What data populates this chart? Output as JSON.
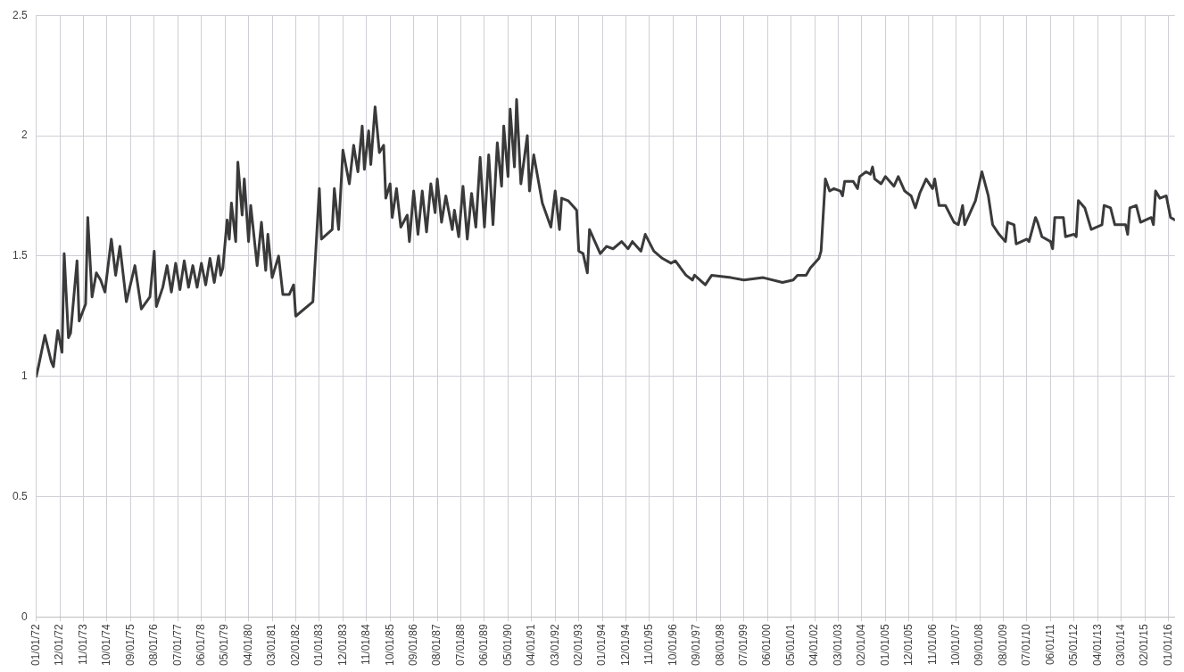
{
  "chart_data": {
    "type": "line",
    "x": [
      "1972-01",
      "1972-02",
      "1972-05",
      "1972-08",
      "1972-09",
      "1972-11",
      "1973-01",
      "1973-02",
      "1973-04",
      "1973-05",
      "1973-08",
      "1973-09",
      "1973-12",
      "1974-01",
      "1974-03",
      "1974-05",
      "1974-07",
      "1974-09",
      "1974-12",
      "1975-02",
      "1975-04",
      "1975-07",
      "1975-11",
      "1976-02",
      "1976-06",
      "1976-08",
      "1976-09",
      "1976-12",
      "1977-02",
      "1977-04",
      "1977-06",
      "1977-08",
      "1977-10",
      "1977-12",
      "1978-02",
      "1978-04",
      "1978-06",
      "1978-08",
      "1978-10",
      "1978-12",
      "1979-02",
      "1979-03",
      "1979-04",
      "1979-06",
      "1979-07",
      "1979-08",
      "1979-10",
      "1979-11",
      "1980-01",
      "1980-02",
      "1980-04",
      "1980-05",
      "1980-08",
      "1980-10",
      "1980-12",
      "1981-01",
      "1981-03",
      "1981-06",
      "1981-08",
      "1981-11",
      "1982-01",
      "1982-02",
      "1982-10",
      "1983-01",
      "1983-02",
      "1983-07",
      "1983-08",
      "1983-10",
      "1983-12",
      "1984-03",
      "1984-05",
      "1984-07",
      "1984-09",
      "1984-10",
      "1984-12",
      "1985-01",
      "1985-03",
      "1985-05",
      "1985-07",
      "1985-08",
      "1985-10",
      "1985-11",
      "1986-01",
      "1986-03",
      "1986-06",
      "1986-07",
      "1986-09",
      "1986-11",
      "1987-01",
      "1987-03",
      "1987-05",
      "1987-07",
      "1987-08",
      "1987-10",
      "1987-12",
      "1988-03",
      "1988-04",
      "1988-06",
      "1988-08",
      "1988-10",
      "1988-12",
      "1989-02",
      "1989-04",
      "1989-06",
      "1989-08",
      "1989-10",
      "1989-12",
      "1990-02",
      "1990-03",
      "1990-05",
      "1990-06",
      "1990-08",
      "1990-09",
      "1990-11",
      "1991-02",
      "1991-03",
      "1991-05",
      "1991-09",
      "1992-01",
      "1992-03",
      "1992-05",
      "1992-06",
      "1992-09",
      "1993-01",
      "1993-02",
      "1993-04",
      "1993-06",
      "1993-07",
      "1993-12",
      "1994-03",
      "1994-06",
      "1994-10",
      "1995-01",
      "1995-03",
      "1995-07",
      "1995-09",
      "1996-01",
      "1996-05",
      "1996-09",
      "1996-11",
      "1997-04",
      "1997-07",
      "1997-08",
      "1998-01",
      "1998-04",
      "1999-01",
      "1999-07",
      "2000-04",
      "2001-01",
      "2001-06",
      "2001-08",
      "2001-12",
      "2002-02",
      "2002-06",
      "2002-07",
      "2002-09",
      "2002-11",
      "2003-01",
      "2003-04",
      "2003-05",
      "2003-06",
      "2003-10",
      "2003-12",
      "2004-01",
      "2004-04",
      "2004-06",
      "2004-07",
      "2004-08",
      "2004-11",
      "2005-01",
      "2005-05",
      "2005-07",
      "2005-10",
      "2006-01",
      "2006-03",
      "2006-05",
      "2006-08",
      "2006-11",
      "2006-12",
      "2007-02",
      "2007-05",
      "2007-09",
      "2007-11",
      "2008-01",
      "2008-02",
      "2008-07",
      "2008-10",
      "2009-01",
      "2009-03",
      "2009-06",
      "2009-09",
      "2009-10",
      "2010-01",
      "2010-02",
      "2010-07",
      "2010-08",
      "2010-11",
      "2010-12",
      "2011-02",
      "2011-06",
      "2011-07",
      "2011-08",
      "2011-12",
      "2012-01",
      "2012-05",
      "2012-06",
      "2012-07",
      "2012-10",
      "2013-01",
      "2013-06",
      "2013-07",
      "2013-10",
      "2013-12",
      "2014-05",
      "2014-06",
      "2014-07",
      "2014-10",
      "2014-12",
      "2015-05",
      "2015-06",
      "2015-07",
      "2015-09",
      "2015-12",
      "2016-02",
      "2016-04"
    ],
    "series": [
      {
        "color": "#3a3a3a",
        "values": [
          1.0,
          1.04,
          1.17,
          1.06,
          1.04,
          1.19,
          1.1,
          1.51,
          1.16,
          1.18,
          1.48,
          1.23,
          1.3,
          1.66,
          1.33,
          1.43,
          1.4,
          1.35,
          1.57,
          1.42,
          1.54,
          1.31,
          1.46,
          1.28,
          1.33,
          1.52,
          1.29,
          1.37,
          1.46,
          1.35,
          1.47,
          1.36,
          1.48,
          1.37,
          1.46,
          1.37,
          1.47,
          1.38,
          1.49,
          1.39,
          1.5,
          1.42,
          1.45,
          1.65,
          1.57,
          1.72,
          1.56,
          1.89,
          1.67,
          1.82,
          1.56,
          1.71,
          1.46,
          1.64,
          1.44,
          1.59,
          1.41,
          1.5,
          1.34,
          1.34,
          1.38,
          1.25,
          1.31,
          1.78,
          1.57,
          1.61,
          1.78,
          1.61,
          1.94,
          1.8,
          1.96,
          1.85,
          2.04,
          1.86,
          2.02,
          1.88,
          2.12,
          1.93,
          1.96,
          1.74,
          1.8,
          1.66,
          1.78,
          1.62,
          1.67,
          1.56,
          1.77,
          1.59,
          1.77,
          1.6,
          1.8,
          1.68,
          1.82,
          1.64,
          1.75,
          1.61,
          1.69,
          1.58,
          1.79,
          1.57,
          1.76,
          1.62,
          1.91,
          1.62,
          1.92,
          1.63,
          1.97,
          1.79,
          2.04,
          1.83,
          2.11,
          1.87,
          2.15,
          1.8,
          2.0,
          1.77,
          1.92,
          1.72,
          1.62,
          1.77,
          1.61,
          1.74,
          1.73,
          1.69,
          1.52,
          1.51,
          1.43,
          1.61,
          1.51,
          1.54,
          1.53,
          1.56,
          1.53,
          1.56,
          1.52,
          1.59,
          1.52,
          1.49,
          1.47,
          1.48,
          1.42,
          1.4,
          1.42,
          1.38,
          1.42,
          1.41,
          1.4,
          1.41,
          1.39,
          1.4,
          1.42,
          1.42,
          1.45,
          1.49,
          1.52,
          1.82,
          1.77,
          1.78,
          1.77,
          1.75,
          1.81,
          1.81,
          1.78,
          1.83,
          1.85,
          1.84,
          1.87,
          1.82,
          1.8,
          1.83,
          1.79,
          1.83,
          1.77,
          1.75,
          1.7,
          1.76,
          1.82,
          1.78,
          1.82,
          1.71,
          1.71,
          1.64,
          1.63,
          1.71,
          1.63,
          1.73,
          1.85,
          1.75,
          1.63,
          1.59,
          1.56,
          1.64,
          1.63,
          1.55,
          1.57,
          1.56,
          1.66,
          1.64,
          1.58,
          1.56,
          1.53,
          1.66,
          1.66,
          1.58,
          1.59,
          1.58,
          1.73,
          1.7,
          1.61,
          1.63,
          1.71,
          1.7,
          1.63,
          1.63,
          1.59,
          1.7,
          1.71,
          1.64,
          1.66,
          1.63,
          1.77,
          1.74,
          1.75,
          1.66,
          1.65
        ]
      }
    ],
    "xlim": [
      "1972-01",
      "2016-04"
    ],
    "xticks": [
      {
        "value": "1972-01",
        "label": "01/01/72"
      },
      {
        "value": "1972-12",
        "label": "12/01/72"
      },
      {
        "value": "1973-11",
        "label": "11/01/73"
      },
      {
        "value": "1974-10",
        "label": "10/01/74"
      },
      {
        "value": "1975-09",
        "label": "09/01/75"
      },
      {
        "value": "1976-08",
        "label": "08/01/76"
      },
      {
        "value": "1977-07",
        "label": "07/01/77"
      },
      {
        "value": "1978-06",
        "label": "06/01/78"
      },
      {
        "value": "1979-05",
        "label": "05/01/79"
      },
      {
        "value": "1980-04",
        "label": "04/01/80"
      },
      {
        "value": "1981-03",
        "label": "03/01/81"
      },
      {
        "value": "1982-02",
        "label": "02/01/82"
      },
      {
        "value": "1983-01",
        "label": "01/01/83"
      },
      {
        "value": "1983-12",
        "label": "12/01/83"
      },
      {
        "value": "1984-11",
        "label": "11/01/84"
      },
      {
        "value": "1985-10",
        "label": "10/01/85"
      },
      {
        "value": "1986-09",
        "label": "09/01/86"
      },
      {
        "value": "1987-08",
        "label": "08/01/87"
      },
      {
        "value": "1988-07",
        "label": "07/01/88"
      },
      {
        "value": "1989-06",
        "label": "06/01/89"
      },
      {
        "value": "1990-05",
        "label": "05/01/90"
      },
      {
        "value": "1991-04",
        "label": "04/01/91"
      },
      {
        "value": "1992-03",
        "label": "03/01/92"
      },
      {
        "value": "1993-02",
        "label": "02/01/93"
      },
      {
        "value": "1994-01",
        "label": "01/01/94"
      },
      {
        "value": "1994-12",
        "label": "12/01/94"
      },
      {
        "value": "1995-11",
        "label": "11/01/95"
      },
      {
        "value": "1996-10",
        "label": "10/01/96"
      },
      {
        "value": "1997-09",
        "label": "09/01/97"
      },
      {
        "value": "1998-08",
        "label": "08/01/98"
      },
      {
        "value": "1999-07",
        "label": "07/01/99"
      },
      {
        "value": "2000-06",
        "label": "06/01/00"
      },
      {
        "value": "2001-05",
        "label": "05/01/01"
      },
      {
        "value": "2002-04",
        "label": "04/01/02"
      },
      {
        "value": "2003-03",
        "label": "03/01/03"
      },
      {
        "value": "2004-02",
        "label": "02/01/04"
      },
      {
        "value": "2005-01",
        "label": "01/01/05"
      },
      {
        "value": "2005-12",
        "label": "12/01/05"
      },
      {
        "value": "2006-11",
        "label": "11/01/06"
      },
      {
        "value": "2007-10",
        "label": "10/01/07"
      },
      {
        "value": "2008-09",
        "label": "09/01/08"
      },
      {
        "value": "2009-08",
        "label": "08/01/09"
      },
      {
        "value": "2010-07",
        "label": "07/01/10"
      },
      {
        "value": "2011-06",
        "label": "06/01/11"
      },
      {
        "value": "2012-05",
        "label": "05/01/12"
      },
      {
        "value": "2013-04",
        "label": "04/01/13"
      },
      {
        "value": "2014-03",
        "label": "03/01/14"
      },
      {
        "value": "2015-02",
        "label": "02/01/15"
      },
      {
        "value": "2016-01",
        "label": "01/01/16"
      }
    ],
    "ylim": [
      0,
      2.5
    ],
    "yticks": [
      0,
      0.5,
      1,
      1.5,
      2,
      2.5
    ],
    "grid": true
  }
}
